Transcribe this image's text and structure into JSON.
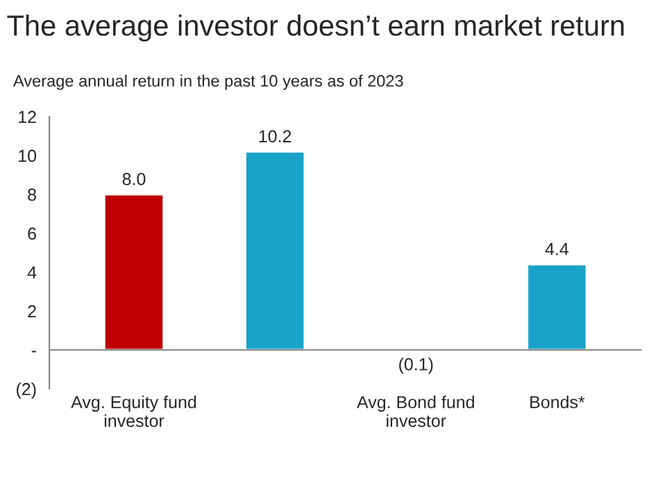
{
  "chart_data": {
    "type": "bar",
    "title": "The average investor doesn’t earn market return",
    "subtitle": "Average annual return in the past 10 years as of 2023",
    "categories": [
      "Avg. Equity fund\ninvestor",
      null,
      "Avg. Bond fund\ninvestor",
      "Bonds*"
    ],
    "values": [
      8.0,
      10.2,
      -0.1,
      4.4
    ],
    "colors": [
      "#c00000",
      "#1aa3c8",
      "#c00000",
      "#1aa3c8"
    ],
    "value_labels": [
      "8.0",
      "10.2",
      "(0.1)",
      "4.4"
    ],
    "ylim": [
      -2,
      12
    ],
    "yticks": [
      {
        "value": -2,
        "label": "(2)"
      },
      {
        "value": 0,
        "label": "-"
      },
      2,
      4,
      6,
      8,
      10,
      12
    ],
    "ref_lines": [
      {
        "axis": "y",
        "value": 0,
        "color": "#888888"
      }
    ]
  }
}
